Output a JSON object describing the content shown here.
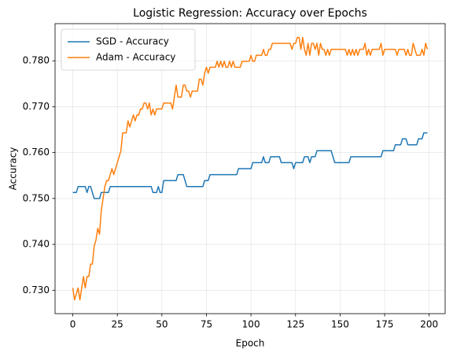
{
  "chart_data": {
    "type": "line",
    "title": "Logistic Regression: Accuracy over Epochs",
    "xlabel": "Epoch",
    "ylabel": "Accuracy",
    "x": [
      0,
      1,
      2,
      3,
      4,
      5,
      6,
      7,
      8,
      9,
      10,
      11,
      12,
      13,
      14,
      15,
      16,
      17,
      18,
      19,
      20,
      21,
      22,
      23,
      24,
      25,
      26,
      27,
      28,
      29,
      30,
      31,
      32,
      33,
      34,
      35,
      36,
      37,
      38,
      39,
      40,
      41,
      42,
      43,
      44,
      45,
      46,
      47,
      48,
      49,
      50,
      51,
      52,
      53,
      54,
      55,
      56,
      57,
      58,
      59,
      60,
      61,
      62,
      63,
      64,
      65,
      66,
      67,
      68,
      69,
      70,
      71,
      72,
      73,
      74,
      75,
      76,
      77,
      78,
      79,
      80,
      81,
      82,
      83,
      84,
      85,
      86,
      87,
      88,
      89,
      90,
      91,
      92,
      93,
      94,
      95,
      96,
      97,
      98,
      99,
      100,
      101,
      102,
      103,
      104,
      105,
      106,
      107,
      108,
      109,
      110,
      111,
      112,
      113,
      114,
      115,
      116,
      117,
      118,
      119,
      120,
      121,
      122,
      123,
      124,
      125,
      126,
      127,
      128,
      129,
      130,
      131,
      132,
      133,
      134,
      135,
      136,
      137,
      138,
      139,
      140,
      141,
      142,
      143,
      144,
      145,
      146,
      147,
      148,
      149,
      150,
      151,
      152,
      153,
      154,
      155,
      156,
      157,
      158,
      159,
      160,
      161,
      162,
      163,
      164,
      165,
      166,
      167,
      168,
      169,
      170,
      171,
      172,
      173,
      174,
      175,
      176,
      177,
      178,
      179,
      180,
      181,
      182,
      183,
      184,
      185,
      186,
      187,
      188,
      189,
      190,
      191,
      192,
      193,
      194,
      195,
      196,
      197,
      198,
      199
    ],
    "series": [
      {
        "name": "SGD - Accuracy",
        "color": "#1f77b4",
        "values": [
          0.7513,
          0.7513,
          0.7513,
          0.7526,
          0.7526,
          0.7526,
          0.7526,
          0.7526,
          0.7513,
          0.7526,
          0.7526,
          0.7513,
          0.75,
          0.75,
          0.75,
          0.75,
          0.7513,
          0.7513,
          0.7513,
          0.7513,
          0.7513,
          0.7526,
          0.7526,
          0.7526,
          0.7526,
          0.7526,
          0.7526,
          0.7526,
          0.7526,
          0.7526,
          0.7526,
          0.7526,
          0.7526,
          0.7526,
          0.7526,
          0.7526,
          0.7526,
          0.7526,
          0.7526,
          0.7526,
          0.7526,
          0.7526,
          0.7526,
          0.7526,
          0.7526,
          0.7513,
          0.7513,
          0.7513,
          0.7526,
          0.7513,
          0.7513,
          0.7539,
          0.7539,
          0.7539,
          0.7539,
          0.7539,
          0.7539,
          0.7539,
          0.7539,
          0.7552,
          0.7552,
          0.7552,
          0.7552,
          0.7539,
          0.7526,
          0.7526,
          0.7526,
          0.7526,
          0.7526,
          0.7526,
          0.7526,
          0.7526,
          0.7526,
          0.7526,
          0.7539,
          0.7539,
          0.7539,
          0.7552,
          0.7552,
          0.7552,
          0.7552,
          0.7552,
          0.7552,
          0.7552,
          0.7552,
          0.7552,
          0.7552,
          0.7552,
          0.7552,
          0.7552,
          0.7552,
          0.7552,
          0.7552,
          0.7565,
          0.7565,
          0.7565,
          0.7565,
          0.7565,
          0.7565,
          0.7565,
          0.7565,
          0.7578,
          0.7578,
          0.7578,
          0.7578,
          0.7578,
          0.7578,
          0.7591,
          0.7578,
          0.7578,
          0.7578,
          0.7591,
          0.7591,
          0.7591,
          0.7591,
          0.7591,
          0.7591,
          0.7578,
          0.7578,
          0.7578,
          0.7578,
          0.7578,
          0.7578,
          0.7578,
          0.7565,
          0.7578,
          0.7578,
          0.7578,
          0.7578,
          0.7578,
          0.7591,
          0.7591,
          0.7591,
          0.7578,
          0.7591,
          0.7591,
          0.7591,
          0.7604,
          0.7604,
          0.7604,
          0.7604,
          0.7604,
          0.7604,
          0.7604,
          0.7604,
          0.7604,
          0.7591,
          0.7578,
          0.7578,
          0.7578,
          0.7578,
          0.7578,
          0.7578,
          0.7578,
          0.7578,
          0.7578,
          0.7591,
          0.7591,
          0.7591,
          0.7591,
          0.7591,
          0.7591,
          0.7591,
          0.7591,
          0.7591,
          0.7591,
          0.7591,
          0.7591,
          0.7591,
          0.7591,
          0.7591,
          0.7591,
          0.7591,
          0.7591,
          0.7604,
          0.7604,
          0.7604,
          0.7604,
          0.7604,
          0.7604,
          0.7604,
          0.7617,
          0.7617,
          0.7617,
          0.7617,
          0.763,
          0.763,
          0.763,
          0.7617,
          0.7617,
          0.7617,
          0.7617,
          0.7617,
          0.7617,
          0.763,
          0.763,
          0.763,
          0.7643,
          0.7643,
          0.7643
        ]
      },
      {
        "name": "Adam - Accuracy",
        "color": "#ff7f0e",
        "values": [
          0.7305,
          0.7279,
          0.7292,
          0.7305,
          0.7279,
          0.7305,
          0.733,
          0.7305,
          0.733,
          0.733,
          0.7357,
          0.7357,
          0.7396,
          0.7409,
          0.7435,
          0.7422,
          0.7474,
          0.75,
          0.7526,
          0.7539,
          0.7539,
          0.7552,
          0.7565,
          0.7552,
          0.7565,
          0.7578,
          0.7591,
          0.7604,
          0.7643,
          0.7643,
          0.7643,
          0.7669,
          0.7656,
          0.7669,
          0.7682,
          0.7669,
          0.7682,
          0.7682,
          0.7695,
          0.7695,
          0.7708,
          0.7708,
          0.7695,
          0.7708,
          0.7682,
          0.7695,
          0.7682,
          0.7695,
          0.7695,
          0.7695,
          0.7695,
          0.7708,
          0.7708,
          0.7708,
          0.7708,
          0.7708,
          0.7695,
          0.7721,
          0.7747,
          0.7721,
          0.7721,
          0.7721,
          0.7747,
          0.7747,
          0.7734,
          0.7734,
          0.7721,
          0.7734,
          0.7734,
          0.7734,
          0.7734,
          0.776,
          0.776,
          0.7747,
          0.7773,
          0.7786,
          0.7773,
          0.7786,
          0.7786,
          0.7786,
          0.7786,
          0.7799,
          0.7786,
          0.7799,
          0.7786,
          0.7799,
          0.7786,
          0.7786,
          0.7799,
          0.7786,
          0.7799,
          0.7786,
          0.7786,
          0.7786,
          0.7786,
          0.7799,
          0.7799,
          0.7799,
          0.7799,
          0.7799,
          0.7812,
          0.7799,
          0.7799,
          0.7812,
          0.7812,
          0.7812,
          0.7812,
          0.7825,
          0.7812,
          0.7812,
          0.7825,
          0.7825,
          0.7838,
          0.7838,
          0.7838,
          0.7838,
          0.7838,
          0.7838,
          0.7838,
          0.7838,
          0.7838,
          0.7838,
          0.7838,
          0.7825,
          0.7838,
          0.7838,
          0.7851,
          0.7851,
          0.7825,
          0.7851,
          0.7825,
          0.7812,
          0.7838,
          0.7812,
          0.7838,
          0.7838,
          0.7825,
          0.7838,
          0.7812,
          0.7838,
          0.7825,
          0.7825,
          0.7812,
          0.7825,
          0.7812,
          0.7825,
          0.7825,
          0.7825,
          0.7825,
          0.7825,
          0.7825,
          0.7825,
          0.7825,
          0.7825,
          0.7812,
          0.7825,
          0.7812,
          0.7825,
          0.7812,
          0.7825,
          0.7812,
          0.7825,
          0.7825,
          0.7825,
          0.7838,
          0.7812,
          0.7825,
          0.7812,
          0.7825,
          0.7825,
          0.7825,
          0.7825,
          0.7825,
          0.7838,
          0.7812,
          0.7825,
          0.7825,
          0.7825,
          0.7825,
          0.7825,
          0.7825,
          0.7825,
          0.7812,
          0.7825,
          0.7825,
          0.7825,
          0.7825,
          0.7812,
          0.7825,
          0.7812,
          0.7812,
          0.7838,
          0.7825,
          0.7812,
          0.7812,
          0.7812,
          0.7825,
          0.7812,
          0.7838,
          0.7825
        ]
      }
    ],
    "xlim": [
      -9.95,
      208.95
    ],
    "xticks": [
      0,
      25,
      50,
      75,
      100,
      125,
      150,
      175,
      200
    ],
    "ylim": [
      0.7249,
      0.7881
    ],
    "yticks": [
      {
        "value": 0.73,
        "label": "0.730"
      },
      {
        "value": 0.74,
        "label": "0.740"
      },
      {
        "value": 0.75,
        "label": "0.750"
      },
      {
        "value": 0.76,
        "label": "0.760"
      },
      {
        "value": 0.77,
        "label": "0.770"
      },
      {
        "value": 0.78,
        "label": "0.780"
      }
    ],
    "grid": true,
    "legend": "upper left"
  }
}
